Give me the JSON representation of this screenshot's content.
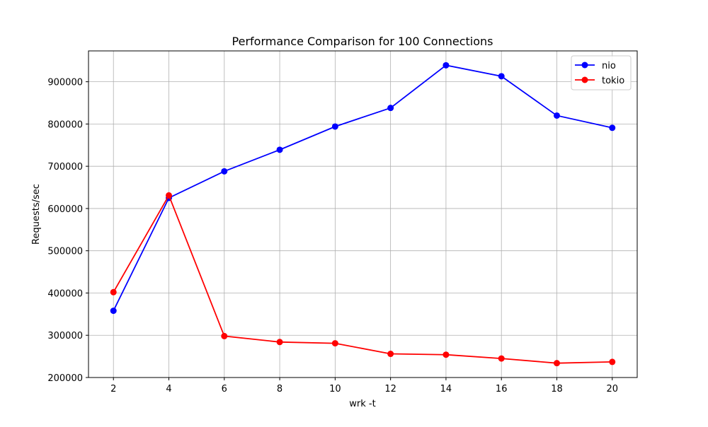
{
  "chart_data": {
    "type": "line",
    "title": "Performance Comparison for 100 Connections",
    "xlabel": "wrk -t",
    "ylabel": "Requests/sec",
    "x": [
      2,
      4,
      6,
      8,
      10,
      12,
      14,
      16,
      18,
      20
    ],
    "x_ticks": [
      "2",
      "4",
      "6",
      "8",
      "10",
      "12",
      "14",
      "16",
      "18",
      "20"
    ],
    "y_ticks": [
      "200000",
      "300000",
      "400000",
      "500000",
      "600000",
      "700000",
      "800000",
      "900000"
    ],
    "y_tick_values": [
      200000,
      300000,
      400000,
      500000,
      600000,
      700000,
      800000,
      900000
    ],
    "xlim": [
      1.1,
      20.9
    ],
    "ylim": [
      200000,
      973000
    ],
    "grid": true,
    "legend_position": "top-right",
    "series": [
      {
        "name": "nio",
        "color": "#0000ff",
        "marker": "circle",
        "values": [
          358000,
          625000,
          688000,
          739000,
          794000,
          838000,
          939000,
          913000,
          820000,
          791000
        ]
      },
      {
        "name": "tokio",
        "color": "#ff0000",
        "marker": "circle",
        "values": [
          402000,
          631000,
          298000,
          284000,
          281000,
          256000,
          254000,
          245000,
          234000,
          237000
        ]
      }
    ]
  }
}
